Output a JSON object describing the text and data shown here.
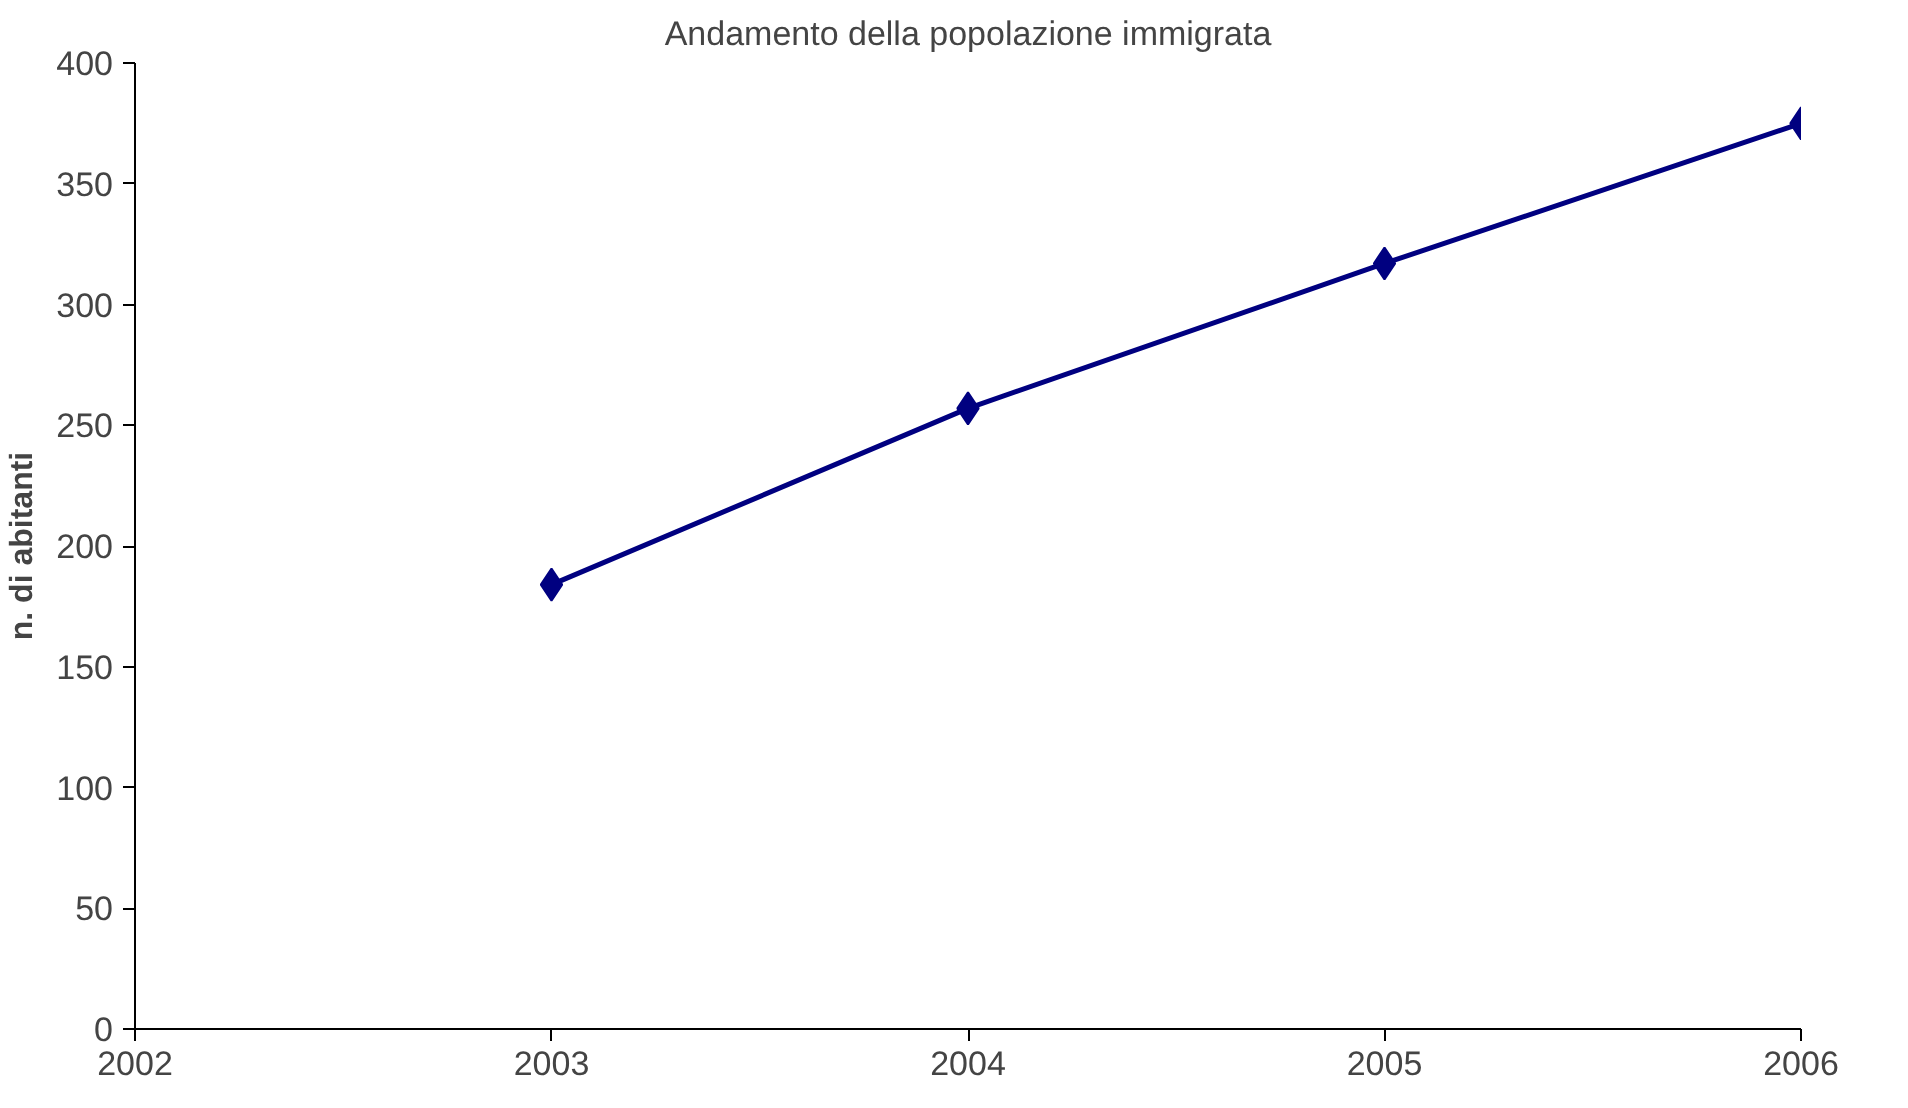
{
  "chart_data": {
    "type": "line",
    "title": "Andamento della popolazione immigrata",
    "ylabel": "n. di abitanti",
    "x": [
      2003,
      2004,
      2005,
      2006
    ],
    "series": [
      {
        "color": "#000080",
        "values": [
          184,
          257,
          317,
          375
        ]
      }
    ],
    "xlim": [
      2002,
      2006
    ],
    "xticks": [
      2002,
      2003,
      2004,
      2005,
      2006
    ],
    "ylim": [
      0,
      400
    ],
    "yticks": [
      0,
      50,
      100,
      150,
      200,
      250,
      300,
      350,
      400
    ],
    "marker": "diamond",
    "line_style": "solid",
    "grid": false
  }
}
